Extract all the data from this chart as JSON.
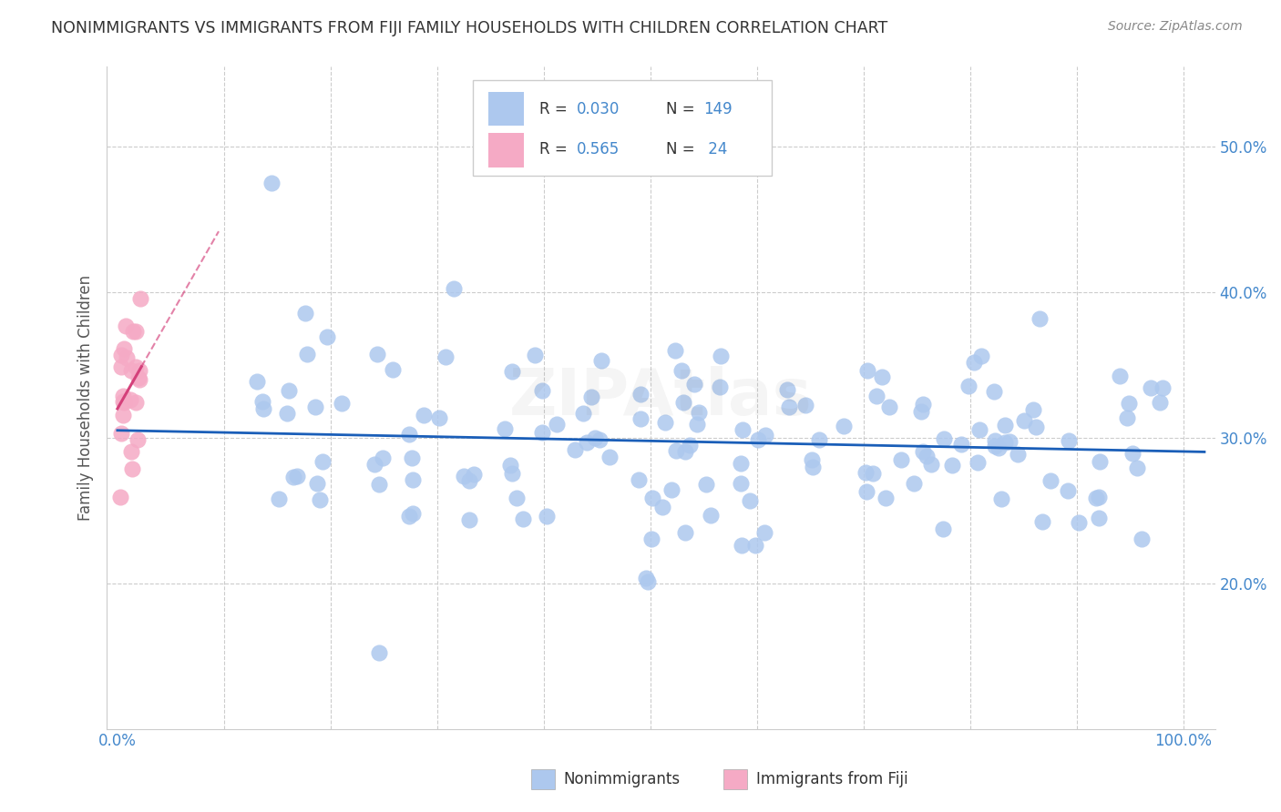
{
  "title": "NONIMMIGRANTS VS IMMIGRANTS FROM FIJI FAMILY HOUSEHOLDS WITH CHILDREN CORRELATION CHART",
  "source": "Source: ZipAtlas.com",
  "ylabel": "Family Households with Children",
  "blue_R": 0.03,
  "blue_N": 149,
  "pink_R": 0.565,
  "pink_N": 24,
  "blue_color": "#adc8ee",
  "pink_color": "#f5aac5",
  "blue_line_color": "#1a5eb8",
  "pink_line_color": "#d4407a",
  "title_color": "#333333",
  "axis_color": "#4488cc",
  "grid_color": "#cccccc",
  "legend_label_blue": "Nonimmigrants",
  "legend_label_pink": "Immigrants from Fiji",
  "watermark": "ZIPAtlas",
  "ylim_low": 0.1,
  "ylim_high": 0.555,
  "xlim_low": -0.01,
  "xlim_high": 1.03
}
